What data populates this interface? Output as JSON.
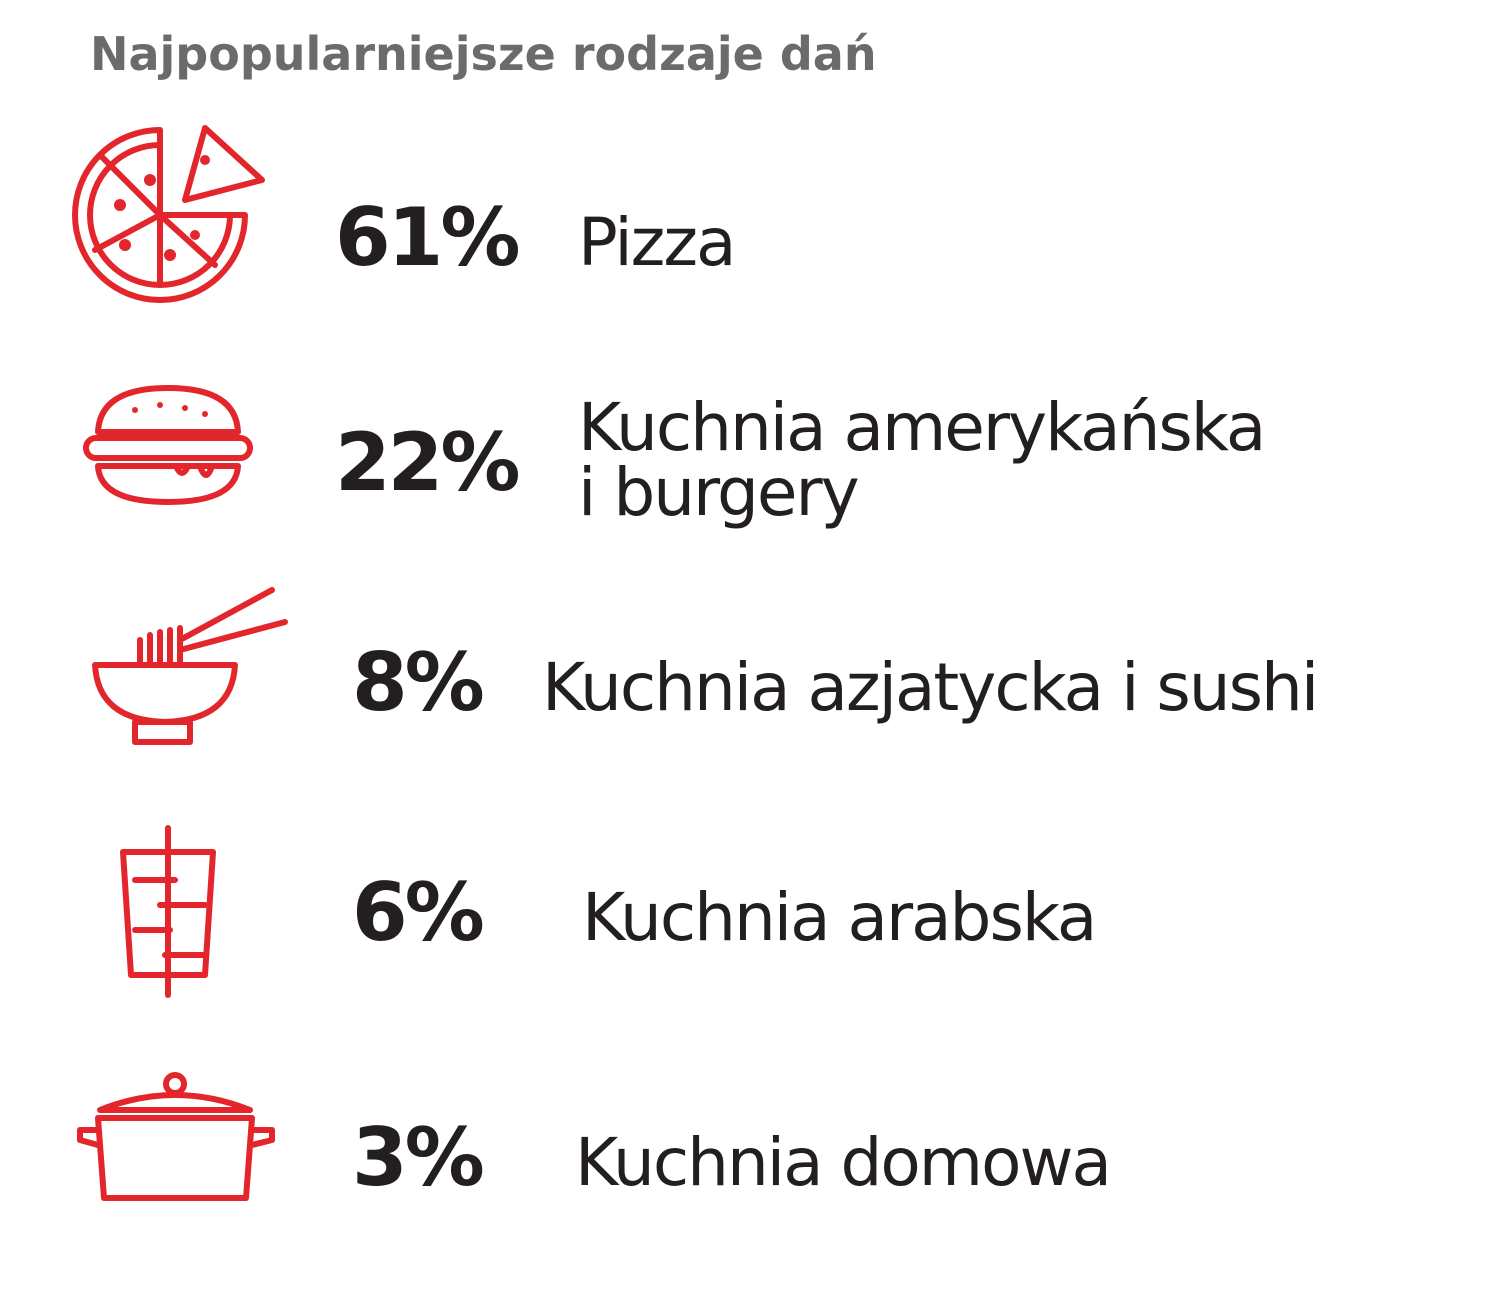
{
  "header": {
    "title": "Najpopularniejsze rodzaje dań"
  },
  "items": [
    {
      "value": "61%",
      "label": [
        "Pizza"
      ]
    },
    {
      "value": "22%",
      "label": [
        "Kuchnia amerykańska",
        "i burgery"
      ]
    },
    {
      "value": "8%",
      "label": [
        "Kuchnia azjatycka i sushi"
      ]
    },
    {
      "value": "6%",
      "label": [
        "Kuchnia arabska"
      ]
    },
    {
      "value": "3%",
      "label": [
        "Kuchnia domowa"
      ]
    }
  ]
}
